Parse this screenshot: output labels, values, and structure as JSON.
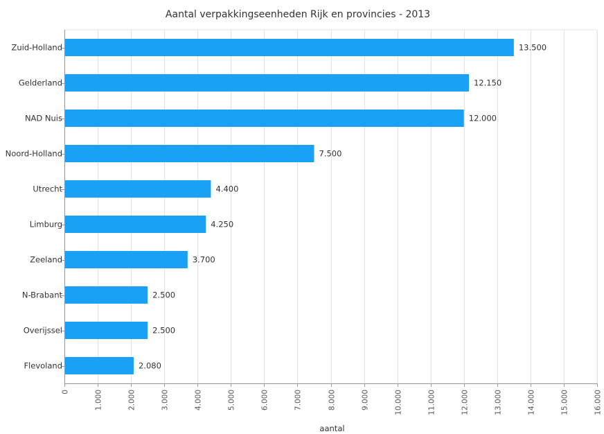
{
  "chart_data": {
    "type": "bar",
    "orientation": "horizontal",
    "title": "Aantal verpakkingseenheden Rijk en provincies - 2013",
    "xlabel": "aantal",
    "ylabel": "",
    "categories": [
      "Zuid-Holland",
      "Gelderland",
      "NAD Nuis",
      "Noord-Holland",
      "Utrecht",
      "Limburg",
      "Zeeland",
      "N-Brabant",
      "Overijssel",
      "Flevoland"
    ],
    "values": [
      13500,
      12150,
      12000,
      7500,
      4400,
      4250,
      3700,
      2500,
      2500,
      2080
    ],
    "value_labels": [
      "13.500",
      "12.150",
      "12.000",
      "7.500",
      "4.400",
      "4.250",
      "3.700",
      "2.500",
      "2.500",
      "2.080"
    ],
    "xlim": [
      0,
      16000
    ],
    "ticks": [
      0,
      1000,
      2000,
      3000,
      4000,
      5000,
      6000,
      7000,
      8000,
      9000,
      10000,
      11000,
      12000,
      13000,
      14000,
      15000,
      16000
    ],
    "tick_labels": [
      "0",
      "1.000",
      "2.000",
      "3.000",
      "4.000",
      "5.000",
      "6.000",
      "7.000",
      "8.000",
      "9.000",
      "10.000",
      "11.000",
      "12.000",
      "13.000",
      "14.000",
      "15.000",
      "16.000"
    ],
    "grid": true,
    "bar_color": "#1aa1f5",
    "grid_color": "#e3e3e3"
  }
}
